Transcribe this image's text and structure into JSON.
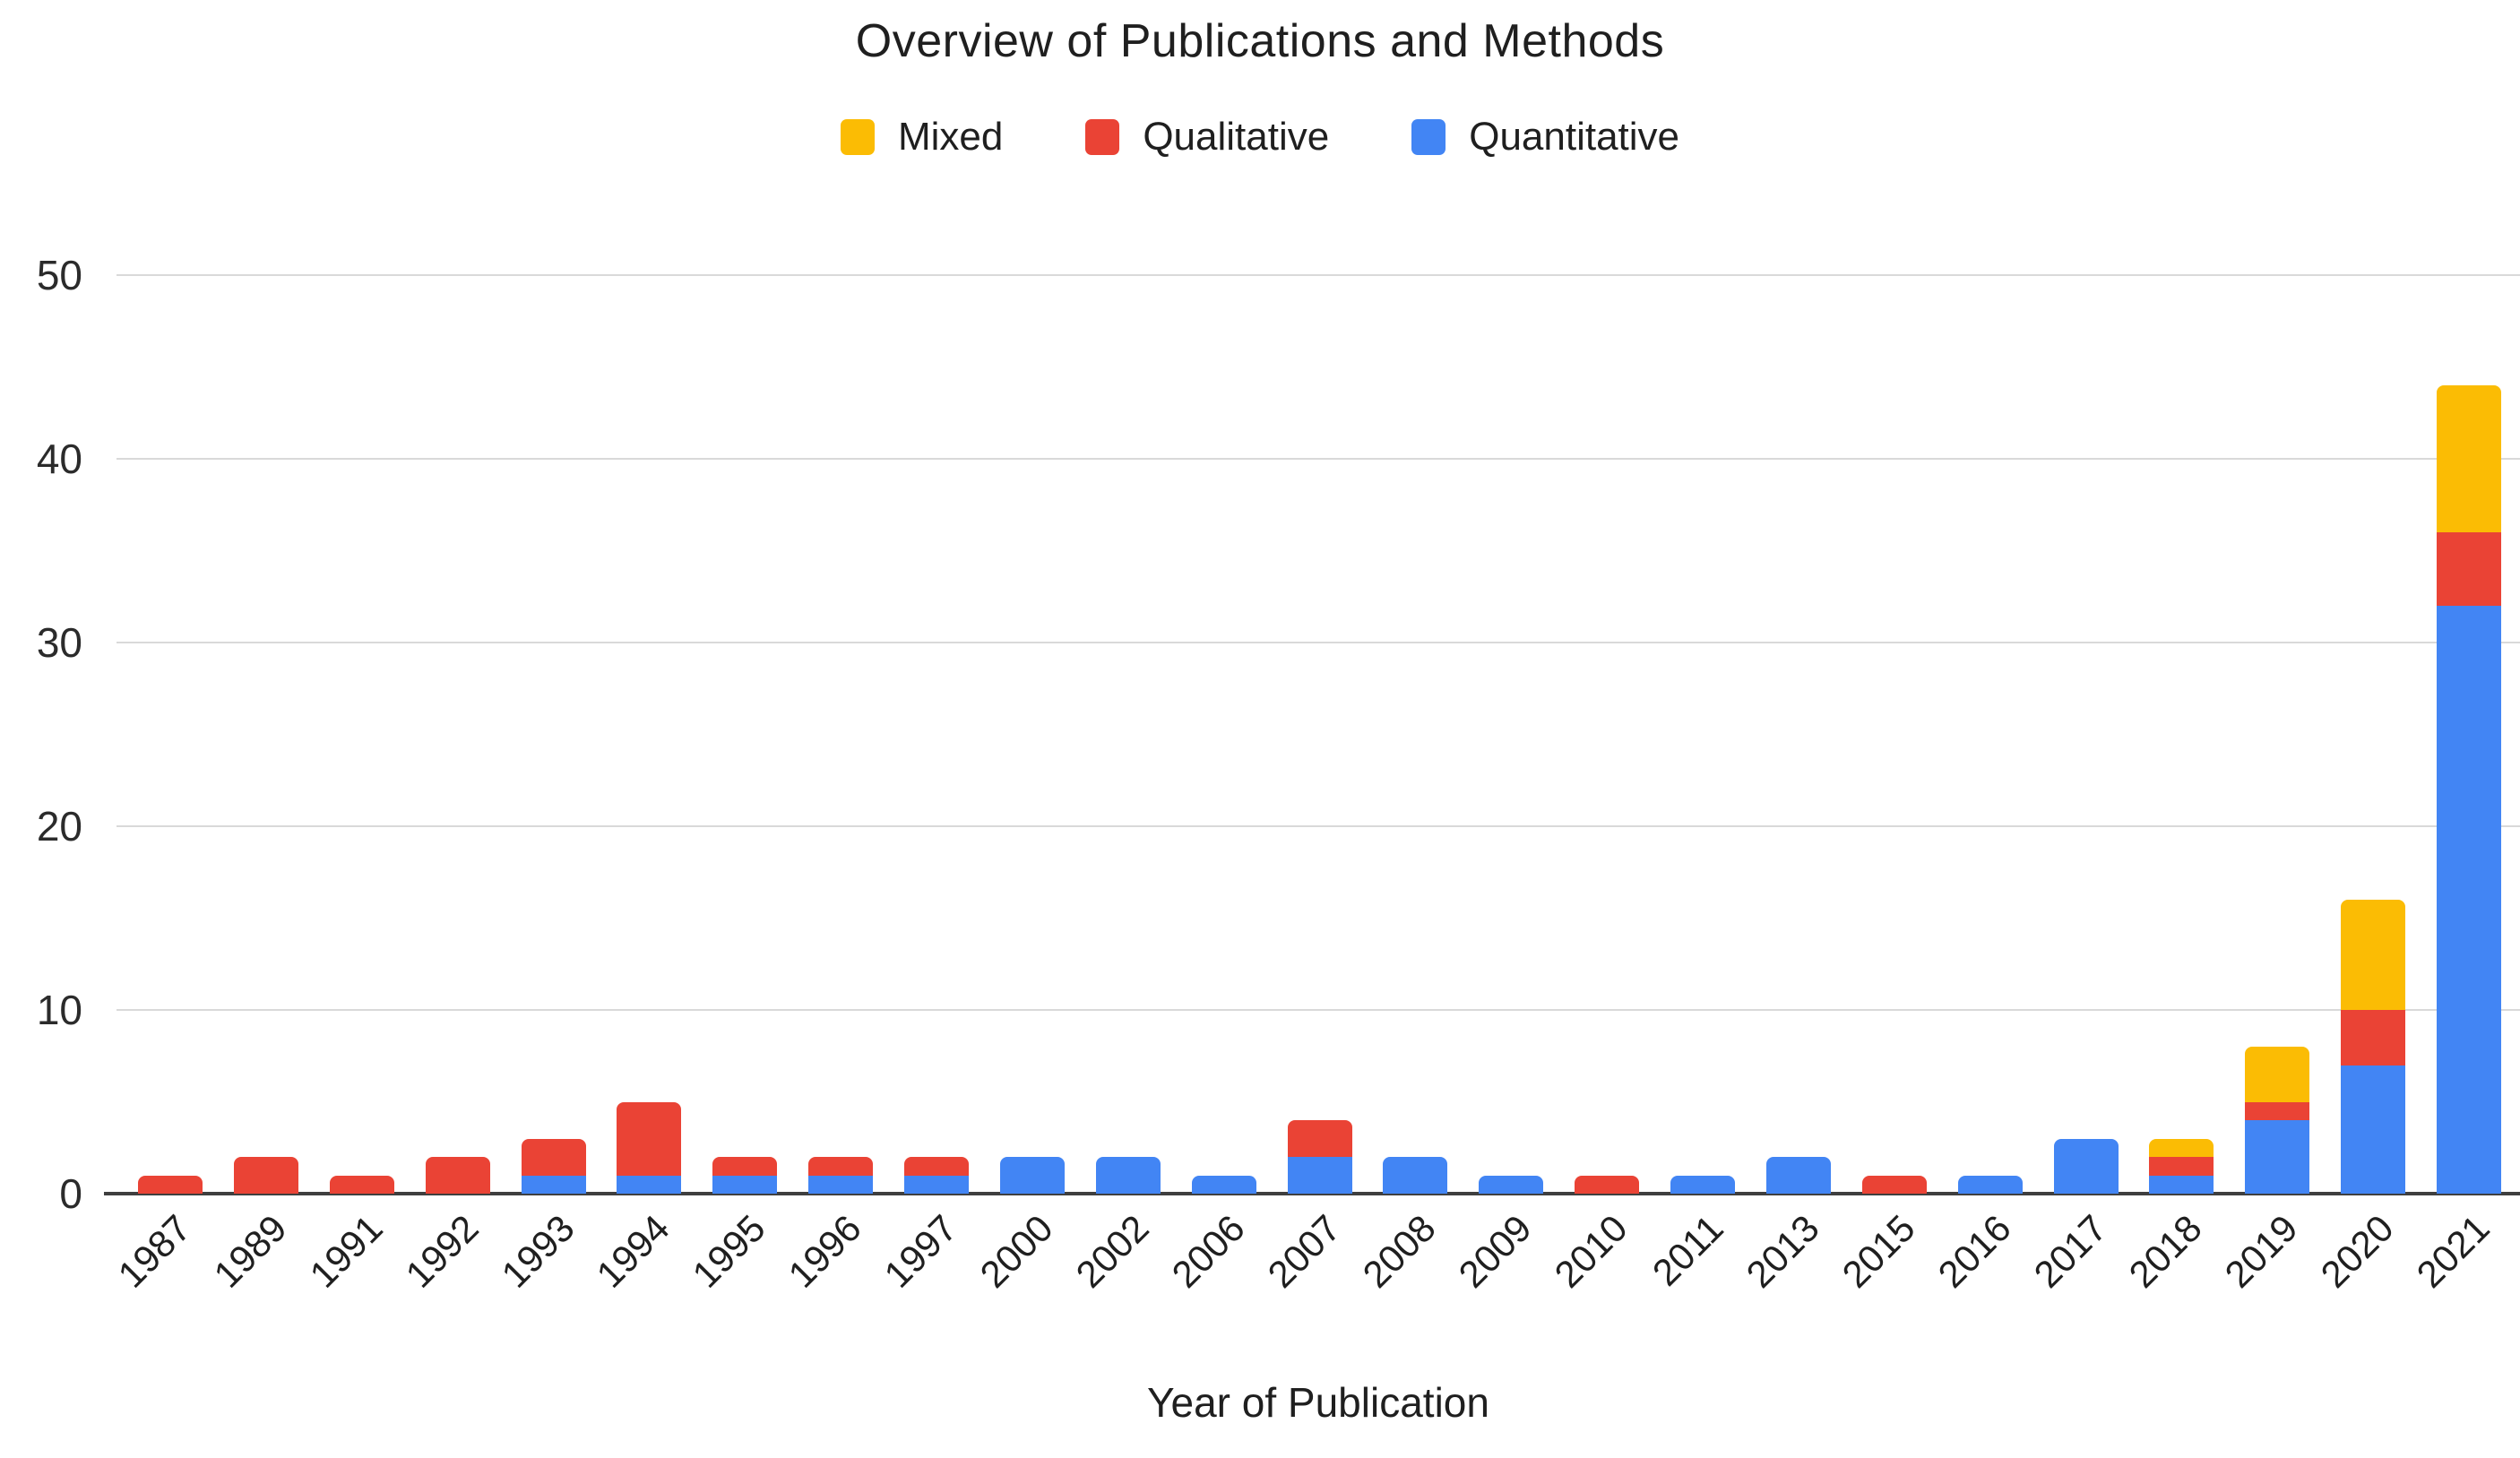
{
  "title": "Overview of Publications and Methods",
  "xlabel": "Year of Publication",
  "colors": {
    "mixed": "#FBBC04",
    "qualitative": "#EA4335",
    "quantitative": "#4285F4",
    "gridline": "#D9D9D9",
    "axis": "#3F3F3F",
    "text": "#1F1F1F"
  },
  "legend": [
    {
      "label": "Mixed",
      "color": "#FBBC04"
    },
    {
      "label": "Qualitative",
      "color": "#EA4335"
    },
    {
      "label": "Quantitative",
      "color": "#4285F4"
    }
  ],
  "chart_data": {
    "type": "bar",
    "stacked": true,
    "title": "Overview of Publications and Methods",
    "xlabel": "Year of Publication",
    "ylabel": "",
    "ylim": [
      0,
      50
    ],
    "yticks": [
      0,
      10,
      20,
      30,
      40,
      50
    ],
    "grid": true,
    "legend_position": "top",
    "categories": [
      "1987",
      "1989",
      "1991",
      "1992",
      "1993",
      "1994",
      "1995",
      "1996",
      "1997",
      "2000",
      "2002",
      "2006",
      "2007",
      "2008",
      "2009",
      "2010",
      "2011",
      "2013",
      "2015",
      "2016",
      "2017",
      "2018",
      "2019",
      "2020",
      "2021"
    ],
    "series": [
      {
        "name": "Quantitative",
        "color": "#4285F4",
        "values": [
          0,
          0,
          0,
          0,
          1,
          1,
          1,
          1,
          1,
          2,
          2,
          1,
          2,
          2,
          1,
          0,
          1,
          2,
          0,
          1,
          3,
          1,
          4,
          7,
          32
        ]
      },
      {
        "name": "Qualitative",
        "color": "#EA4335",
        "values": [
          1,
          2,
          1,
          2,
          2,
          4,
          1,
          1,
          1,
          0,
          0,
          0,
          2,
          0,
          0,
          1,
          0,
          0,
          1,
          0,
          0,
          1,
          1,
          3,
          4
        ]
      },
      {
        "name": "Mixed",
        "color": "#FBBC04",
        "values": [
          0,
          0,
          0,
          0,
          0,
          0,
          0,
          0,
          0,
          0,
          0,
          0,
          0,
          0,
          0,
          0,
          0,
          0,
          0,
          0,
          0,
          1,
          3,
          6,
          8
        ]
      }
    ]
  }
}
